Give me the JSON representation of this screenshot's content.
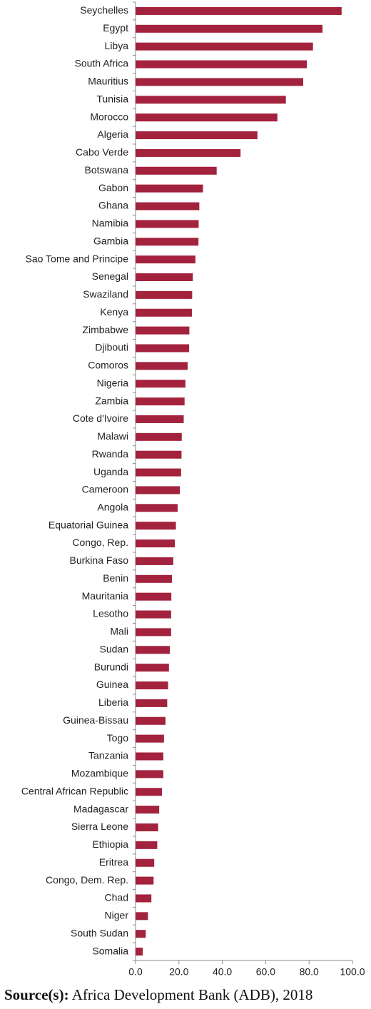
{
  "chart_data": {
    "type": "bar",
    "orientation": "horizontal",
    "color": "#a3223d",
    "categories": [
      "Seychelles",
      "Egypt",
      "Libya",
      "South Africa",
      "Mauritius",
      "Tunisia",
      "Morocco",
      "Algeria",
      "Cabo Verde",
      "Botswana",
      "Gabon",
      "Ghana",
      "Namibia",
      "Gambia",
      "Sao Tome and Principe",
      "Senegal",
      "Swaziland",
      "Kenya",
      "Zimbabwe",
      "Djibouti",
      "Comoros",
      "Nigeria",
      "Zambia",
      "Cote d'Ivoire",
      "Malawi",
      "Rwanda",
      "Uganda",
      "Cameroon",
      "Angola",
      "Equatorial Guinea",
      "Congo, Rep.",
      "Burkina Faso",
      "Benin",
      "Mauritania",
      "Lesotho",
      "Mali",
      "Sudan",
      "Burundi",
      "Guinea",
      "Liberia",
      "Guinea-Bissau",
      "Togo",
      "Tanzania",
      "Mozambique",
      "Central African Republic",
      "Madagascar",
      "Sierra Leone",
      "Ethiopia",
      "Eritrea",
      "Congo, Dem. Rep.",
      "Chad",
      "Niger",
      "South Sudan",
      "Somalia"
    ],
    "values": [
      95.0,
      86.2,
      81.8,
      79.0,
      77.3,
      69.3,
      65.4,
      56.2,
      48.4,
      37.4,
      31.1,
      29.4,
      29.1,
      29.0,
      27.6,
      26.4,
      26.1,
      26.0,
      24.8,
      24.7,
      24.0,
      23.0,
      22.6,
      22.2,
      21.3,
      21.2,
      21.0,
      20.4,
      19.4,
      18.6,
      18.1,
      17.4,
      16.8,
      16.5,
      16.4,
      16.4,
      15.8,
      15.4,
      15.0,
      14.6,
      13.8,
      13.1,
      12.8,
      12.8,
      12.2,
      10.9,
      10.4,
      10.0,
      8.6,
      8.3,
      7.3,
      5.7,
      4.7,
      3.3
    ],
    "xlim": [
      0,
      100
    ],
    "xticks": [
      {
        "value": 0,
        "label": "0.0"
      },
      {
        "value": 20,
        "label": "20.0"
      },
      {
        "value": 40,
        "label": "40.0"
      },
      {
        "value": 60,
        "label": "60.0"
      },
      {
        "value": 80,
        "label": "80.0"
      },
      {
        "value": 100,
        "label": "100.0"
      }
    ]
  },
  "source_label": "Source(s):",
  "source_text": "Africa Development Bank (ADB), 2018"
}
